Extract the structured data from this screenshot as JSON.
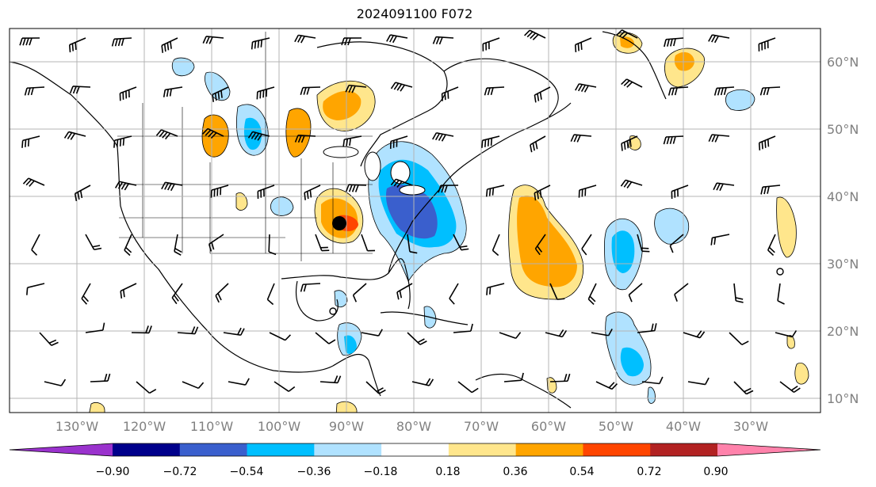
{
  "title": "2024091100 F072",
  "lon_labels": [
    "130°W",
    "120°W",
    "110°W",
    "100°W",
    "90°W",
    "80°W",
    "70°W",
    "60°W",
    "50°W",
    "40°W",
    "30°W"
  ],
  "lat_labels": [
    "60°N",
    "50°N",
    "40°N",
    "30°N",
    "20°N",
    "10°N"
  ],
  "colorbar": {
    "ticks": [
      "−0.90",
      "−0.72",
      "−0.54",
      "−0.36",
      "−0.18",
      "0.18",
      "0.36",
      "0.54",
      "0.72",
      "0.90"
    ],
    "colors": [
      "#9a32cd",
      "#00008b",
      "#3a5fcd",
      "#00bfff",
      "#b0e2ff",
      "#ffffff",
      "#ffe68c",
      "#ffa500",
      "#ff4500",
      "#b22222",
      "#ff82ab"
    ]
  },
  "colors": {
    "light_blue": "#b0e2ff",
    "blue": "#00bfff",
    "dark_blue": "#3a5fcd",
    "yellow": "#ffe68c",
    "orange": "#ffa500",
    "red": "#ff4500"
  },
  "marker": "storm-center-dot",
  "map_projection": "plate-carree",
  "barbs_shown": true
}
